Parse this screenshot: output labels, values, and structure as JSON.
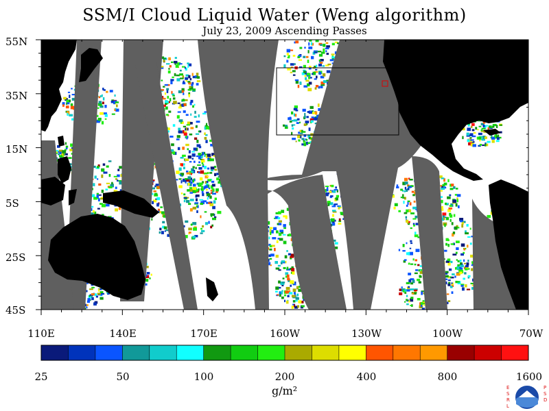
{
  "title": "SSM/I Cloud Liquid Water (Weng algorithm)",
  "subtitle": "July 23, 2009  Ascending Passes",
  "lat_labels": [
    "55N",
    "35N",
    "15N",
    "5S",
    "25S",
    "45S"
  ],
  "lon_labels": [
    "110E",
    "140E",
    "170E",
    "160W",
    "130W",
    "100W",
    "70W"
  ],
  "colorbar": {
    "colors": [
      "#0a1a7a",
      "#0033bb",
      "#0a55ff",
      "#119999",
      "#11cccc",
      "#11ffff",
      "#119911",
      "#11cc11",
      "#22ee11",
      "#aaaa00",
      "#dddd00",
      "#ffff00",
      "#ff5500",
      "#ff7700",
      "#ff9900",
      "#990000",
      "#cc0000",
      "#ff1111"
    ],
    "tick_labels": [
      "25",
      "50",
      "100",
      "200",
      "400",
      "800",
      "1600"
    ]
  },
  "units": "g/m²",
  "logo": {
    "left_text": "ESRL",
    "right_text": "PSD",
    "center_text": "NOAA"
  },
  "colors": {
    "land": "#000000",
    "gap": "#5f5f5f",
    "ocean_clear": "#ffffff"
  }
}
